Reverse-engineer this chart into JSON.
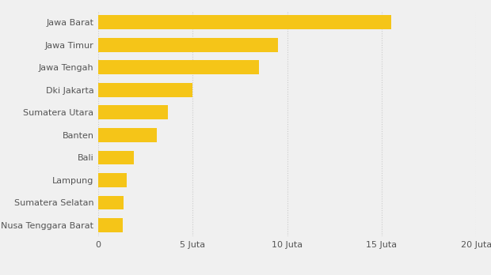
{
  "categories": [
    "Nusa Tenggara Barat",
    "Sumatera Selatan",
    "Lampung",
    "Bali",
    "Banten",
    "Sumatera Utara",
    "Dki Jakarta",
    "Jawa Tengah",
    "Jawa Timur",
    "Jawa Barat"
  ],
  "values": [
    1.3,
    1.35,
    1.5,
    1.9,
    3.1,
    3.7,
    5.0,
    8.5,
    9.5,
    15.5
  ],
  "bar_color": "#F5C518",
  "background_color": "#F0F0F0",
  "xlim": [
    0,
    20
  ],
  "xticks": [
    0,
    5,
    10,
    15,
    20
  ],
  "xtick_labels": [
    "0",
    "5 Juta",
    "10 Juta",
    "15 Juta",
    "20 Juta"
  ],
  "bar_height": 0.62,
  "ytick_fontsize": 8.0,
  "xtick_fontsize": 8.0,
  "grid_color": "#cccccc",
  "grid_linestyle": ":",
  "grid_linewidth": 0.8
}
